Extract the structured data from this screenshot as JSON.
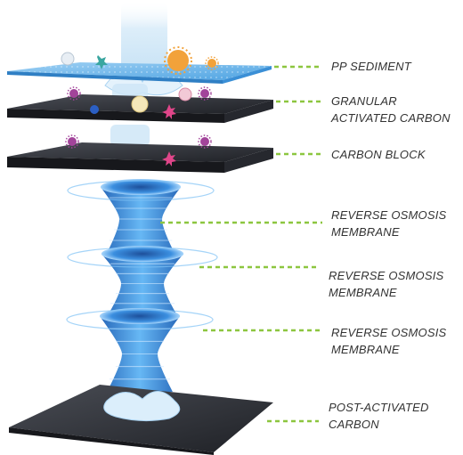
{
  "colors": {
    "connector": "#8cc63f",
    "label_text": "#333333",
    "sediment_sheet": "#6fb6ea",
    "carbon_sheet": "#2f3136",
    "membrane": "#2e86de",
    "water": "#cfe6f7"
  },
  "labels": [
    {
      "lines": [
        "PP SEDIMENT"
      ]
    },
    {
      "lines": [
        "GRANULAR",
        "ACTIVATED CARBON"
      ]
    },
    {
      "lines": [
        "CARBON BLOCK"
      ]
    },
    {
      "lines": [
        "REVERSE OSMOSIS",
        "MEMBRANE"
      ]
    },
    {
      "lines": [
        "REVERSE OSMOSIS",
        "MEMBRANE"
      ]
    },
    {
      "lines": [
        "REVERSE OSMOSIS",
        "MEMBRANE"
      ]
    },
    {
      "lines": [
        "POST-ACTIVATED",
        "CARBON"
      ]
    }
  ],
  "icons": {
    "contaminant": "virus-particle-icon",
    "water": "water-stream-icon",
    "membrane": "funnel-membrane-icon"
  }
}
